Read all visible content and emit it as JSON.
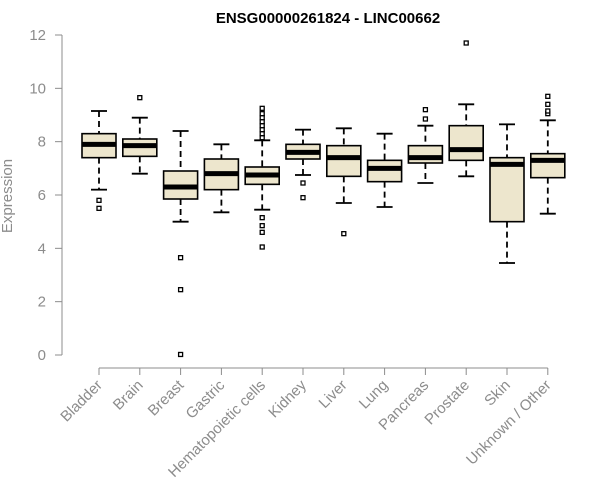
{
  "chart_data": {
    "type": "box",
    "title": "ENSG00000261824 - LINC00662",
    "xlabel": "",
    "ylabel": "Expression",
    "ylim": [
      0,
      12
    ],
    "yticks": [
      0,
      2,
      4,
      6,
      8,
      10,
      12
    ],
    "grid": false,
    "colors": {
      "box_fill": "#ede6cd",
      "outline": "#000000",
      "axis": "#8c8c8c",
      "median": "#000000"
    },
    "categories": [
      "Bladder",
      "Brain",
      "Breast",
      "Gastric",
      "Hematopoietic cells",
      "Kidney",
      "Liver",
      "Lung",
      "Pancreas",
      "Prostate",
      "Skin",
      "Unknown / Other"
    ],
    "boxes": [
      {
        "category": "Bladder",
        "whisker_low": 6.2,
        "q1": 7.4,
        "median": 7.9,
        "q3": 8.3,
        "whisker_high": 9.15,
        "outliers": [
          5.8,
          5.5
        ]
      },
      {
        "category": "Brain",
        "whisker_low": 6.8,
        "q1": 7.45,
        "median": 7.85,
        "q3": 8.1,
        "whisker_high": 8.9,
        "outliers": [
          9.65
        ]
      },
      {
        "category": "Breast",
        "whisker_low": 5.0,
        "q1": 5.85,
        "median": 6.3,
        "q3": 6.9,
        "whisker_high": 8.4,
        "outliers": [
          3.65,
          2.45,
          0.02
        ]
      },
      {
        "category": "Gastric",
        "whisker_low": 5.35,
        "q1": 6.2,
        "median": 6.8,
        "q3": 7.35,
        "whisker_high": 7.9,
        "outliers": []
      },
      {
        "category": "Hematopoietic cells",
        "whisker_low": 5.45,
        "q1": 6.4,
        "median": 6.75,
        "q3": 7.05,
        "whisker_high": 8.05,
        "outliers": [
          8.15,
          8.3,
          8.45,
          8.6,
          8.75,
          8.9,
          9.05,
          9.25,
          5.15,
          4.85,
          4.6,
          4.05
        ]
      },
      {
        "category": "Kidney",
        "whisker_low": 6.75,
        "q1": 7.35,
        "median": 7.6,
        "q3": 7.9,
        "whisker_high": 8.45,
        "outliers": [
          6.45,
          5.9
        ]
      },
      {
        "category": "Liver",
        "whisker_low": 5.7,
        "q1": 6.7,
        "median": 7.4,
        "q3": 7.85,
        "whisker_high": 8.5,
        "outliers": [
          4.55
        ]
      },
      {
        "category": "Lung",
        "whisker_low": 5.55,
        "q1": 6.5,
        "median": 7.0,
        "q3": 7.3,
        "whisker_high": 8.3,
        "outliers": []
      },
      {
        "category": "Pancreas",
        "whisker_low": 6.45,
        "q1": 7.2,
        "median": 7.4,
        "q3": 7.85,
        "whisker_high": 8.6,
        "outliers": [
          8.85,
          9.2
        ]
      },
      {
        "category": "Prostate",
        "whisker_low": 6.7,
        "q1": 7.3,
        "median": 7.7,
        "q3": 8.6,
        "whisker_high": 9.4,
        "outliers": [
          11.7
        ]
      },
      {
        "category": "Skin",
        "whisker_low": 3.45,
        "q1": 5.0,
        "median": 7.15,
        "q3": 7.4,
        "whisker_high": 8.65,
        "outliers": []
      },
      {
        "category": "Unknown / Other",
        "whisker_low": 5.3,
        "q1": 6.65,
        "median": 7.3,
        "q3": 7.55,
        "whisker_high": 8.8,
        "outliers": [
          9.05,
          9.15,
          9.4,
          9.7
        ]
      }
    ]
  }
}
